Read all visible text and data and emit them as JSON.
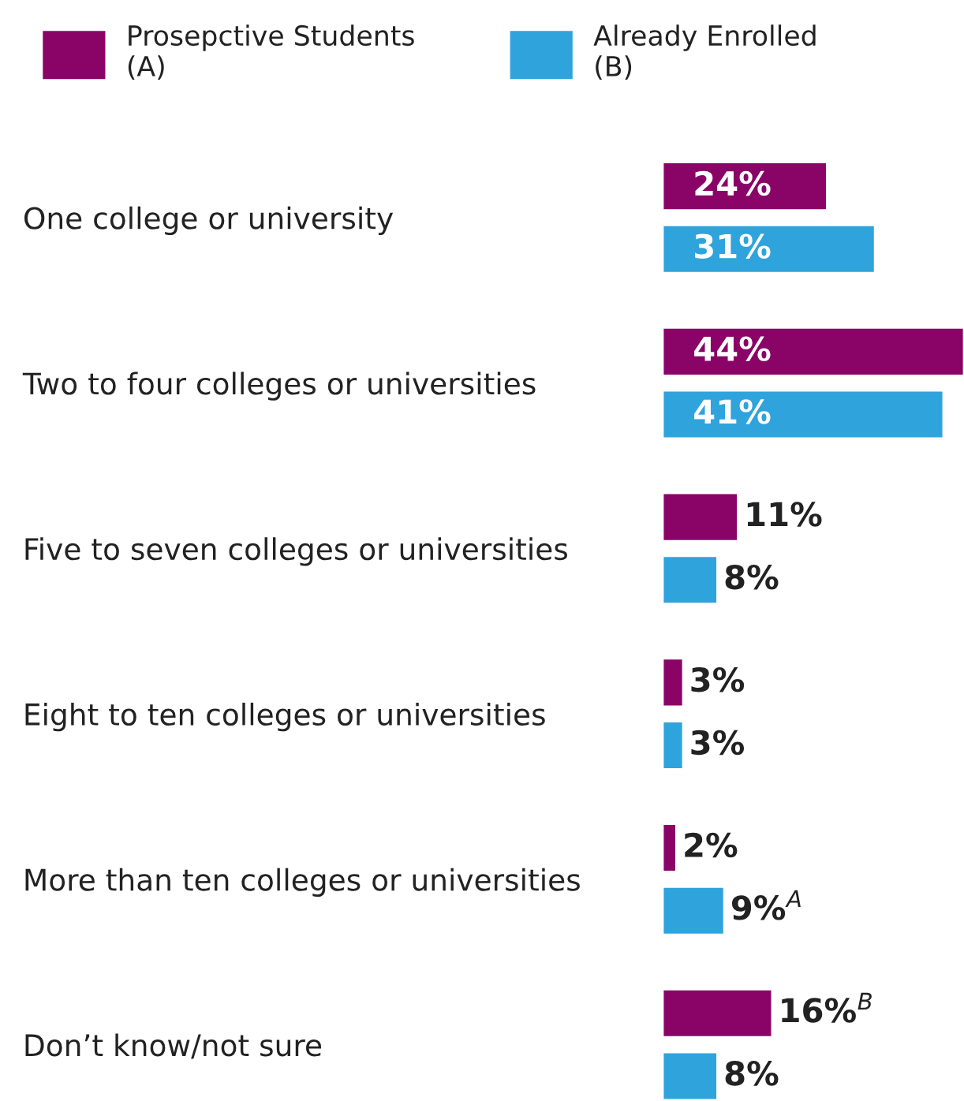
{
  "chart_data": {
    "type": "bar",
    "orientation": "horizontal",
    "categories": [
      "One college or university",
      "Two to four colleges or universities",
      "Five to seven colleges or universities",
      "Eight to ten colleges or universities",
      "More than ten colleges or universities",
      "Don’t know/not sure"
    ],
    "series": [
      {
        "name": "Prosepctive Students (A)",
        "color": "#8a0467",
        "values": [
          24,
          44,
          11,
          3,
          2,
          16
        ],
        "value_labels": [
          "24%",
          "44%",
          "11%",
          "3%",
          "2%",
          "16%$^{B}$"
        ]
      },
      {
        "name": "Already Enrolled (B)",
        "color": "#2fa3dc",
        "values": [
          31,
          41,
          8,
          3,
          9,
          8
        ],
        "value_labels": [
          "31%",
          "41%",
          "8%",
          "3%",
          "9%$^{A}$",
          "8%"
        ]
      }
    ],
    "legend": "top left",
    "grid": false
  }
}
